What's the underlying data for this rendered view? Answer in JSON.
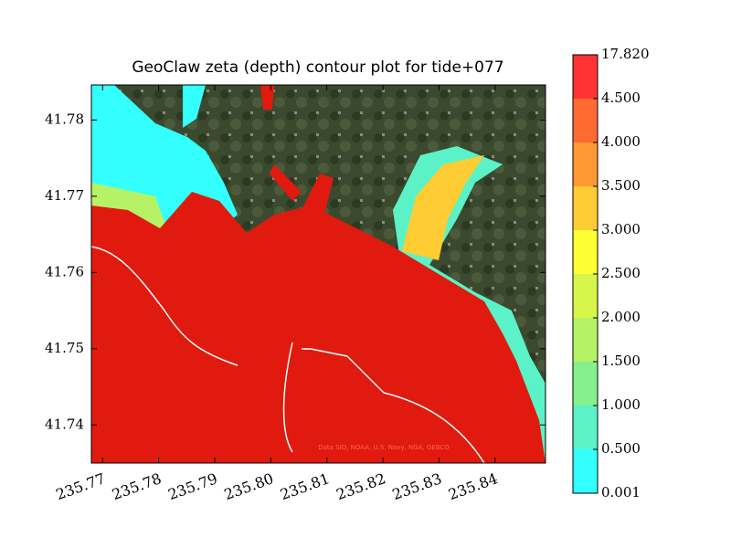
{
  "chart_data": {
    "type": "contour-map",
    "title": "GeoClaw zeta (depth) contour plot for tide+077",
    "attribution": "Data SIO, NOAA, U.S. Navy, NGA, GEBCO",
    "xlim": [
      235.768,
      235.849
    ],
    "xticks": [
      235.77,
      235.78,
      235.79,
      {
        "value": 235.8,
        "label": "235.80"
      },
      235.81,
      235.82,
      235.83,
      235.84
    ],
    "ylim": [
      41.735,
      41.7846
    ],
    "yticks": [
      41.74,
      41.75,
      41.76,
      41.77,
      41.78
    ],
    "colorbar": {
      "levels": [
        0.001,
        {
          "value": 0.5,
          "label": "0.500"
        },
        {
          "value": 1,
          "label": "1.000"
        },
        {
          "value": 1.5,
          "label": "1.500"
        },
        {
          "value": 2,
          "label": "2.000"
        },
        {
          "value": 2.5,
          "label": "2.500"
        },
        {
          "value": 3,
          "label": "3.000"
        },
        {
          "value": 3.5,
          "label": "3.500"
        },
        {
          "value": 4,
          "label": "4.000"
        },
        {
          "value": 4.5,
          "label": "4.500"
        },
        {
          "value": 17.82,
          "label": "17.820"
        }
      ],
      "colors": [
        "#33ffff",
        "#5bf2c8",
        "#84f08e",
        "#b5f266",
        "#d8f54a",
        "#ffff33",
        "#ffcc33",
        "#ff9933",
        "#ff6a33",
        "#ff3333"
      ]
    }
  }
}
